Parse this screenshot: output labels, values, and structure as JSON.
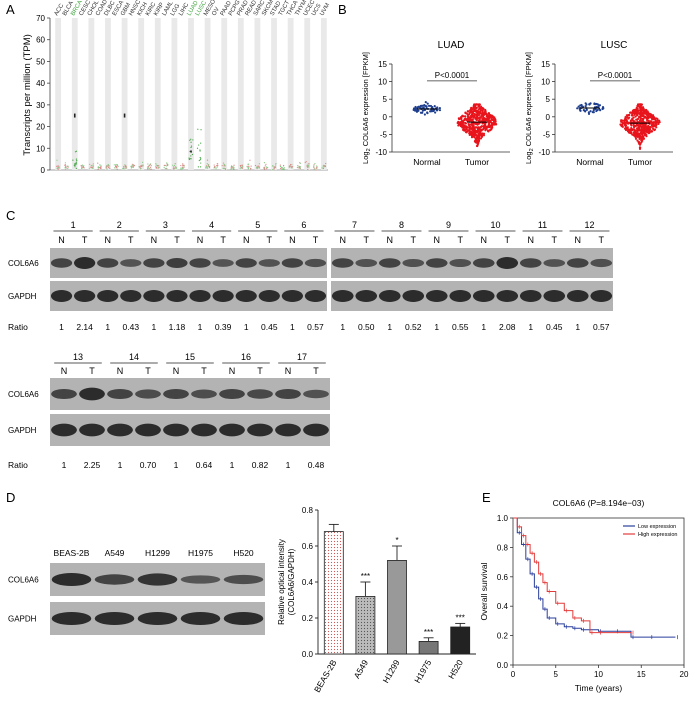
{
  "panels": {
    "A": "A",
    "B": "B",
    "C": "C",
    "D": "D",
    "E": "E"
  },
  "chart_data": [
    {
      "panel": "A",
      "type": "scatter",
      "ylabel": "Transcripts per million (TPM)",
      "yticks": [
        0,
        10,
        20,
        30,
        40,
        50,
        60,
        70
      ],
      "ylim": [
        0,
        70
      ],
      "cancer_types": [
        "ACC",
        "BLCA",
        "BRCA",
        "CESC",
        "CHOL",
        "COAD",
        "DLBC",
        "ESCA",
        "GBM",
        "HNSC",
        "KICH",
        "KIRC",
        "KIRP",
        "LAML",
        "LGG",
        "LIHC",
        "LUAD",
        "LUSC",
        "MESO",
        "OV",
        "PAAD",
        "PCPG",
        "PRAD",
        "READ",
        "SARC",
        "SKCM",
        "STAD",
        "TGCT",
        "THCA",
        "THYM",
        "UCEC",
        "UCS",
        "UVM"
      ],
      "highlighted": [
        "BRCA",
        "LUAD",
        "LUSC"
      ],
      "highlight_color": "#3fa33f"
    },
    {
      "panel": "B",
      "type": "scatter",
      "title": "LUAD",
      "categories": [
        "Normal",
        "Tumor"
      ],
      "ylabel_main": "Log",
      "ylabel_sub": "2",
      "ylabel_rest": " COL6A6 expression [FPKM]",
      "yticks": [
        15,
        10,
        5,
        0,
        -5,
        -10
      ],
      "ylim": [
        -10,
        15
      ],
      "annotation": "P<0.0001",
      "normal": {
        "mean": 2.2,
        "sd": 0.8,
        "n": 59,
        "color": "#1f3f8f"
      },
      "tumor": {
        "mean": -1.5,
        "sd": 2.6,
        "n": 500,
        "color": "#e8141c"
      }
    },
    {
      "panel": "B",
      "type": "scatter",
      "title": "LUSC",
      "categories": [
        "Normal",
        "Tumor"
      ],
      "ylabel_main": "Log",
      "ylabel_sub": "2",
      "ylabel_rest": " COL6A6 expression [FPKM]",
      "yticks": [
        15,
        10,
        5,
        0,
        -5,
        -10
      ],
      "ylim": [
        -10,
        15
      ],
      "annotation": "P<0.0001",
      "normal": {
        "mean": 2.5,
        "sd": 0.8,
        "n": 49,
        "color": "#1f3f8f"
      },
      "tumor": {
        "mean": -1.8,
        "sd": 2.5,
        "n": 502,
        "color": "#e8141c"
      }
    },
    {
      "panel": "D",
      "type": "bar",
      "ylabel_lines": [
        "Relative optical intensity",
        "(COL6A6/GAPDH)"
      ],
      "categories": [
        "BEAS-2B",
        "A549",
        "H1299",
        "H1975",
        "H520"
      ],
      "values": [
        0.68,
        0.32,
        0.52,
        0.07,
        0.15
      ],
      "errors": [
        0.04,
        0.08,
        0.08,
        0.02,
        0.02
      ],
      "significance": [
        "",
        "***",
        "*",
        "***",
        "***"
      ],
      "yticks": [
        0.0,
        0.2,
        0.4,
        0.6,
        0.8
      ],
      "ylim": [
        0,
        0.8
      ]
    },
    {
      "panel": "E",
      "type": "line",
      "title": "COL6A6 (P=8.194e−03)",
      "xlabel": "Time (years)",
      "ylabel": "Overall survival",
      "xticks": [
        0,
        5,
        10,
        15,
        20
      ],
      "yticks": [
        0.0,
        0.2,
        0.4,
        0.6,
        0.8,
        1.0
      ],
      "xlim": [
        0,
        20
      ],
      "ylim": [
        0,
        1
      ],
      "legend_position": "top-right",
      "series": [
        {
          "name": "Low expression",
          "color": "#2a3e9c",
          "x": [
            0,
            0.5,
            1,
            1.5,
            2,
            2.5,
            3,
            3.5,
            4,
            5,
            6,
            7,
            8,
            10,
            12,
            13.8,
            16,
            19
          ],
          "y": [
            1.0,
            0.9,
            0.82,
            0.72,
            0.62,
            0.53,
            0.45,
            0.38,
            0.32,
            0.28,
            0.26,
            0.25,
            0.24,
            0.23,
            0.23,
            0.19,
            0.19,
            0.19
          ]
        },
        {
          "name": "High expression",
          "color": "#e23b3b",
          "x": [
            0,
            0.5,
            1,
            1.5,
            2,
            2.5,
            3,
            3.5,
            4,
            5,
            6,
            7,
            8,
            9,
            10,
            13.8
          ],
          "y": [
            1.0,
            0.94,
            0.88,
            0.82,
            0.76,
            0.7,
            0.62,
            0.56,
            0.5,
            0.42,
            0.37,
            0.32,
            0.3,
            0.22,
            0.22,
            0.22
          ]
        }
      ]
    }
  ],
  "blots": {
    "C1": {
      "lanes": [
        "1",
        "2",
        "3",
        "4",
        "5",
        "6"
      ],
      "lanes_right": [
        "7",
        "8",
        "9",
        "10",
        "11",
        "12"
      ],
      "nt": [
        "N",
        "T"
      ],
      "rows": [
        "COL6A6",
        "GAPDH"
      ],
      "ratio_label": "Ratio",
      "ratios": [
        "1",
        "2.14",
        "1",
        "0.43",
        "1",
        "1.18",
        "1",
        "0.39",
        "1",
        "0.45",
        "1",
        "0.57"
      ],
      "ratios_right": [
        "1",
        "0.50",
        "1",
        "0.52",
        "1",
        "0.55",
        "1",
        "2.08",
        "1",
        "0.45",
        "1",
        "0.57"
      ]
    },
    "C2": {
      "lanes": [
        "13",
        "14",
        "15",
        "16",
        "17"
      ],
      "nt": [
        "N",
        "T"
      ],
      "rows": [
        "COL6A6",
        "GAPDH"
      ],
      "ratio_label": "Ratio",
      "ratios": [
        "1",
        "2.25",
        "1",
        "0.70",
        "1",
        "0.64",
        "1",
        "0.82",
        "1",
        "0.48"
      ]
    },
    "D": {
      "lines": [
        "BEAS-2B",
        "A549",
        "H1299",
        "H1975",
        "H520"
      ],
      "rows": [
        "COL6A6",
        "GAPDH"
      ],
      "intensity": [
        1.0,
        0.55,
        0.85,
        0.2,
        0.35
      ]
    }
  }
}
